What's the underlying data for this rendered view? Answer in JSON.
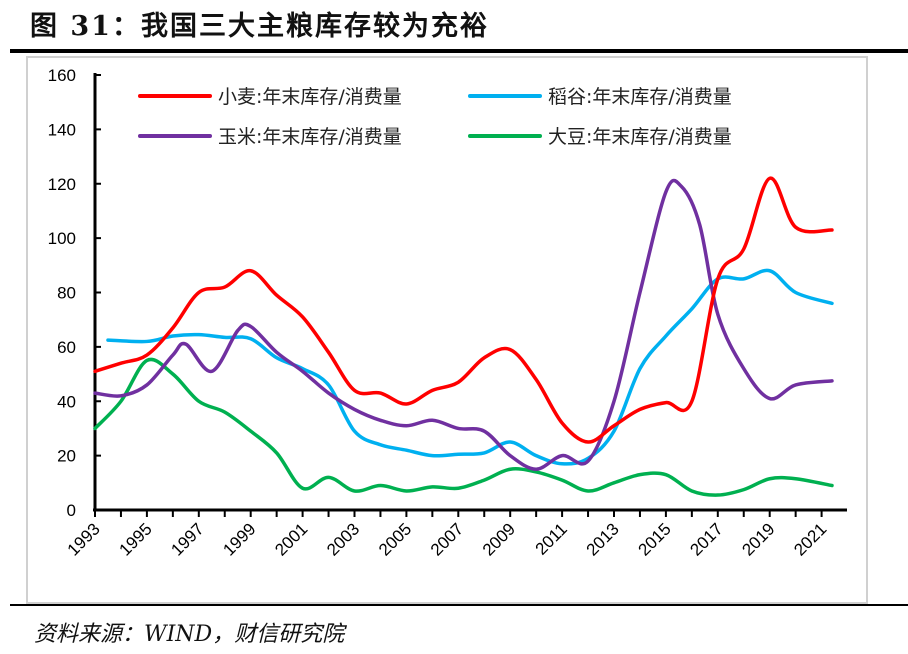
{
  "title": "图 31：我国三大主粮库存较为充裕",
  "source": "资料来源：WIND，财信研究院",
  "chart_data": {
    "type": "line",
    "title": "图 31：我国三大主粮库存较为充裕",
    "xlabel": "",
    "ylabel": "",
    "ylim": [
      0,
      160
    ],
    "xlim": [
      1993,
      2022
    ],
    "yticks": [
      0,
      20,
      40,
      60,
      80,
      100,
      120,
      140,
      160
    ],
    "xticks": [
      "1993",
      "1995",
      "1997",
      "1999",
      "2001",
      "2003",
      "2005",
      "2007",
      "2009",
      "2011",
      "2013",
      "2015",
      "2017",
      "2019",
      "2021"
    ],
    "grid": false,
    "legend_placement": "top",
    "series": [
      {
        "name": "小麦:年末库存/消费量",
        "color": "#ff0000",
        "x": [
          1993,
          1994,
          1995,
          1996,
          1997,
          1998,
          1999,
          2000,
          2001,
          2002,
          2003,
          2004,
          2005,
          2006,
          2007,
          2008,
          2009,
          2010,
          2011,
          2012,
          2013,
          2014,
          2015,
          2016,
          2017,
          2018,
          2019,
          2020,
          2021.4
        ],
        "values": [
          51,
          54,
          57,
          67,
          80,
          82,
          88,
          79,
          71,
          58,
          44,
          43,
          39,
          44,
          47,
          56,
          59,
          48,
          32,
          25,
          31,
          37,
          39.5,
          40,
          85,
          96,
          122,
          104,
          103
        ]
      },
      {
        "name": "稻谷:年末库存/消费量",
        "color": "#00b0f0",
        "x": [
          1993.5,
          1995,
          1996,
          1997,
          1998,
          1999,
          2000,
          2001,
          2002,
          2003,
          2004,
          2005,
          2006,
          2007,
          2008,
          2009,
          2010,
          2011,
          2012,
          2013,
          2014,
          2015,
          2016,
          2017,
          2018,
          2019,
          2020,
          2021.4
        ],
        "values": [
          62.5,
          62,
          64,
          64.5,
          63.5,
          63,
          56,
          52,
          46,
          29,
          24,
          22,
          20,
          20.5,
          21,
          25,
          20,
          17,
          19,
          29,
          52,
          64,
          74,
          85,
          85,
          88,
          80,
          76
        ]
      },
      {
        "name": "玉米:年末库存/消费量",
        "color": "#7030a0",
        "x": [
          1993,
          1994,
          1995,
          1996,
          1996.5,
          1997.5,
          1998.5,
          1999,
          2000,
          2001,
          2002,
          2003,
          2004,
          2005,
          2006,
          2007,
          2008,
          2009,
          2010,
          2011,
          2012,
          2013,
          2014,
          2015,
          2015.6,
          2016.3,
          2017,
          2018,
          2019,
          2020,
          2021.4
        ],
        "values": [
          43,
          42,
          46,
          57,
          61,
          51,
          66,
          67.5,
          58,
          51,
          43,
          37,
          33,
          31,
          33,
          30,
          29,
          20,
          15,
          20,
          18,
          40,
          80,
          117,
          119,
          105,
          72,
          52,
          41,
          46,
          47.5
        ]
      },
      {
        "name": "大豆:年末库存/消费量",
        "color": "#00b050",
        "x": [
          1993,
          1994,
          1995,
          1996,
          1997,
          1998,
          1999,
          2000,
          2001,
          2002,
          2003,
          2004,
          2005,
          2006,
          2007,
          2008,
          2009,
          2010,
          2011,
          2012,
          2013,
          2014,
          2015,
          2016,
          2017,
          2018,
          2019,
          2020,
          2021.4
        ],
        "values": [
          30,
          40,
          55,
          50,
          40,
          36,
          29,
          21,
          8,
          12,
          7,
          9,
          7,
          8.5,
          8,
          11,
          15,
          14,
          11,
          7,
          10,
          13,
          13,
          7,
          5.5,
          7.5,
          11.5,
          11.5,
          9
        ]
      }
    ]
  }
}
